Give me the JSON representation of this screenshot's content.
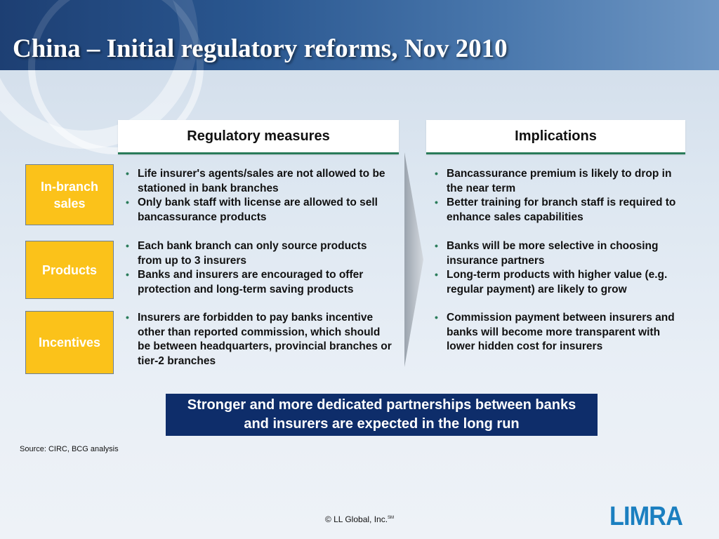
{
  "title": "China – Initial regulatory reforms, Nov 2010",
  "columns": {
    "left": "Regulatory measures",
    "right": "Implications"
  },
  "rows": [
    {
      "label": "In-branch\nsales",
      "measures": [
        "Life insurer's agents/sales are not allowed to be stationed in bank branches",
        "Only bank staff with license are allowed to sell bancassurance products"
      ],
      "implications": [
        "Bancassurance premium is likely to drop in the near term",
        "Better training for branch staff is required to enhance sales capabilities"
      ]
    },
    {
      "label": "Products",
      "measures": [
        "Each bank branch can only source products from up to 3 insurers",
        "Banks and insurers are encouraged to offer protection and long-term saving products"
      ],
      "implications": [
        "Banks will be more selective in choosing insurance partners",
        "Long-term products with higher value (e.g. regular payment) are likely to grow"
      ]
    },
    {
      "label": "Incentives",
      "measures": [
        "Insurers are forbidden to pay banks incentive other than reported commission, which should be between headquarters, provincial branches or tier-2 branches"
      ],
      "implications": [
        "Commission payment between insurers and banks will become more transparent with lower hidden cost for insurers"
      ]
    }
  ],
  "bullet_glyph": "•",
  "conclusion": "Stronger and more dedicated partnerships between banks and insurers are expected in the long run",
  "source": "Source: CIRC, BCG analysis",
  "copyright": "© LL Global, Inc.",
  "copyright_mark": "SM",
  "logo_text": "LIMRA",
  "colors": {
    "accent_green": "#2a7c5a",
    "row_label_fill": "#fbc21a",
    "conclusion_fill": "#0e2d6a",
    "logo_blue": "#1b7fc0"
  }
}
